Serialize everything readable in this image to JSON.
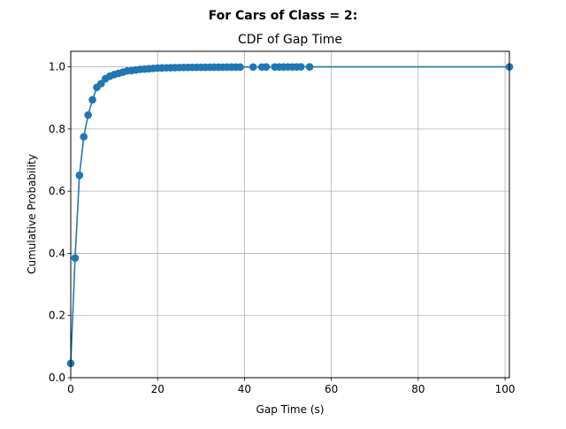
{
  "chart_data": {
    "type": "line",
    "suptitle": "For Cars of Class = 2:",
    "title": "CDF of Gap Time",
    "xlabel": "Gap Time (s)",
    "ylabel": "Cumulative Probability",
    "xlim": [
      0,
      101
    ],
    "ylim": [
      0,
      1.05
    ],
    "grid": true,
    "x_ticks": [
      0,
      20,
      40,
      60,
      80,
      100
    ],
    "x_tick_labels": [
      "0",
      "20",
      "40",
      "60",
      "80",
      "100"
    ],
    "y_ticks": [
      0.0,
      0.2,
      0.4,
      0.6,
      0.8,
      1.0
    ],
    "y_tick_labels": [
      "0.0",
      "0.2",
      "0.4",
      "0.6",
      "0.8",
      "1.0"
    ],
    "series": [
      {
        "name": "CDF",
        "color": "#1f77b4",
        "marker": "circle",
        "x": [
          0,
          1,
          2,
          3,
          4,
          5,
          6,
          7,
          8,
          9,
          10,
          11,
          12,
          13,
          14,
          15,
          16,
          17,
          18,
          19,
          20,
          21,
          22,
          23,
          24,
          25,
          26,
          27,
          28,
          29,
          30,
          31,
          32,
          33,
          34,
          35,
          36,
          37,
          38,
          39,
          42,
          44,
          45,
          47,
          48,
          49,
          50,
          51,
          52,
          53,
          55,
          101
        ],
        "y": [
          0.046,
          0.385,
          0.651,
          0.775,
          0.845,
          0.894,
          0.934,
          0.946,
          0.962,
          0.97,
          0.975,
          0.979,
          0.983,
          0.987,
          0.988,
          0.99,
          0.992,
          0.993,
          0.994,
          0.995,
          0.996,
          0.9965,
          0.997,
          0.9972,
          0.9975,
          0.9977,
          0.998,
          0.9982,
          0.9984,
          0.9985,
          0.9986,
          0.9987,
          0.9988,
          0.9989,
          0.999,
          0.9991,
          0.9992,
          0.9993,
          0.9993,
          0.9994,
          0.9995,
          0.9995,
          0.9996,
          0.9996,
          0.9997,
          0.9997,
          0.9998,
          0.9998,
          0.9998,
          0.9999,
          0.9999,
          1.0
        ]
      }
    ]
  }
}
